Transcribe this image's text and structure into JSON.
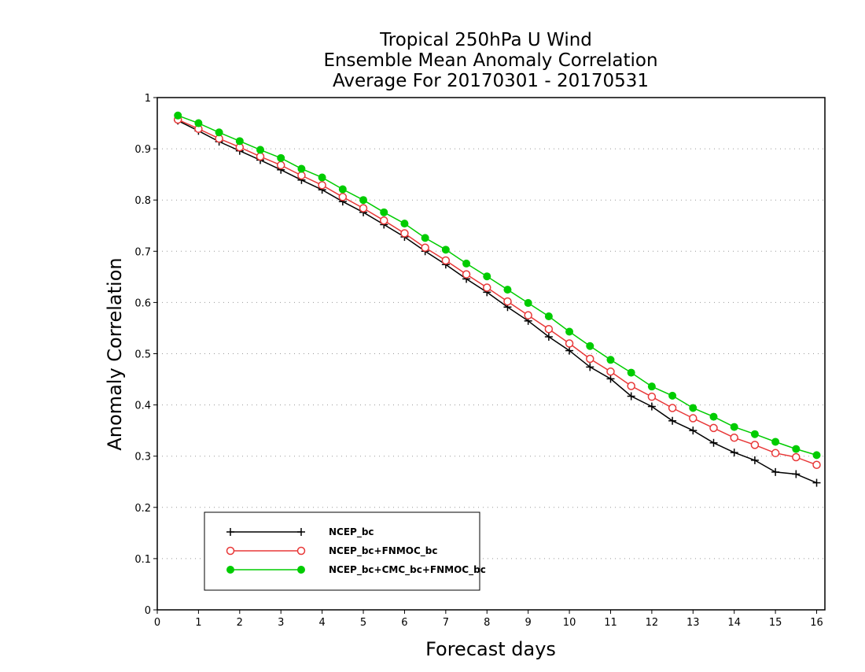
{
  "chart_data": {
    "type": "line",
    "title": [
      "Tropical 250hPa U Wind",
      "Ensemble Mean Anomaly Correlation",
      "Average For 20170301 - 20170531"
    ],
    "xlabel": "Forecast days",
    "ylabel": "Anomaly Correlation",
    "xlim": [
      0,
      16.2
    ],
    "ylim": [
      0,
      1
    ],
    "xticks": [
      "0",
      "1",
      "2",
      "3",
      "4",
      "5",
      "6",
      "7",
      "8",
      "9",
      "10",
      "11",
      "12",
      "13",
      "14",
      "15",
      "16"
    ],
    "yticks": [
      "0",
      "0.1",
      "0.2",
      "0.3",
      "0.4",
      "0.5",
      "0.6",
      "0.7",
      "0.8",
      "0.9",
      "1"
    ],
    "grid": "horizontal-dotted",
    "legend_position": "bottom-left",
    "x": [
      0.5,
      1,
      1.5,
      2,
      2.5,
      3,
      3.5,
      4,
      4.5,
      5,
      5.5,
      6,
      6.5,
      7,
      7.5,
      8,
      8.5,
      9,
      9.5,
      10,
      10.5,
      11,
      11.5,
      12,
      12.5,
      13,
      13.5,
      14,
      14.5,
      15,
      15.5,
      16
    ],
    "series": [
      {
        "name": "NCEP_bc",
        "color": "#000000",
        "marker": "plus",
        "values": [
          0.955,
          0.935,
          0.914,
          0.896,
          0.878,
          0.859,
          0.839,
          0.82,
          0.797,
          0.776,
          0.752,
          0.728,
          0.7,
          0.674,
          0.646,
          0.62,
          0.591,
          0.564,
          0.533,
          0.506,
          0.474,
          0.451,
          0.417,
          0.397,
          0.369,
          0.35,
          0.326,
          0.307,
          0.292,
          0.269,
          0.265,
          0.248
        ]
      },
      {
        "name": "NCEP_bc+FNMOC_bc",
        "color": "#e83838",
        "marker": "open-circle",
        "values": [
          0.957,
          0.939,
          0.92,
          0.903,
          0.885,
          0.868,
          0.848,
          0.829,
          0.806,
          0.784,
          0.76,
          0.735,
          0.707,
          0.682,
          0.655,
          0.629,
          0.602,
          0.575,
          0.548,
          0.52,
          0.49,
          0.465,
          0.437,
          0.416,
          0.394,
          0.374,
          0.355,
          0.336,
          0.322,
          0.306,
          0.298,
          0.283
        ]
      },
      {
        "name": "NCEP_bc+CMC_bc+FNMOC_bc",
        "color": "#00cc00",
        "marker": "filled-circle",
        "values": [
          0.965,
          0.95,
          0.932,
          0.915,
          0.898,
          0.882,
          0.861,
          0.844,
          0.821,
          0.8,
          0.776,
          0.754,
          0.726,
          0.703,
          0.676,
          0.651,
          0.625,
          0.599,
          0.573,
          0.543,
          0.515,
          0.488,
          0.463,
          0.436,
          0.418,
          0.394,
          0.377,
          0.357,
          0.343,
          0.328,
          0.314,
          0.302
        ]
      }
    ]
  }
}
